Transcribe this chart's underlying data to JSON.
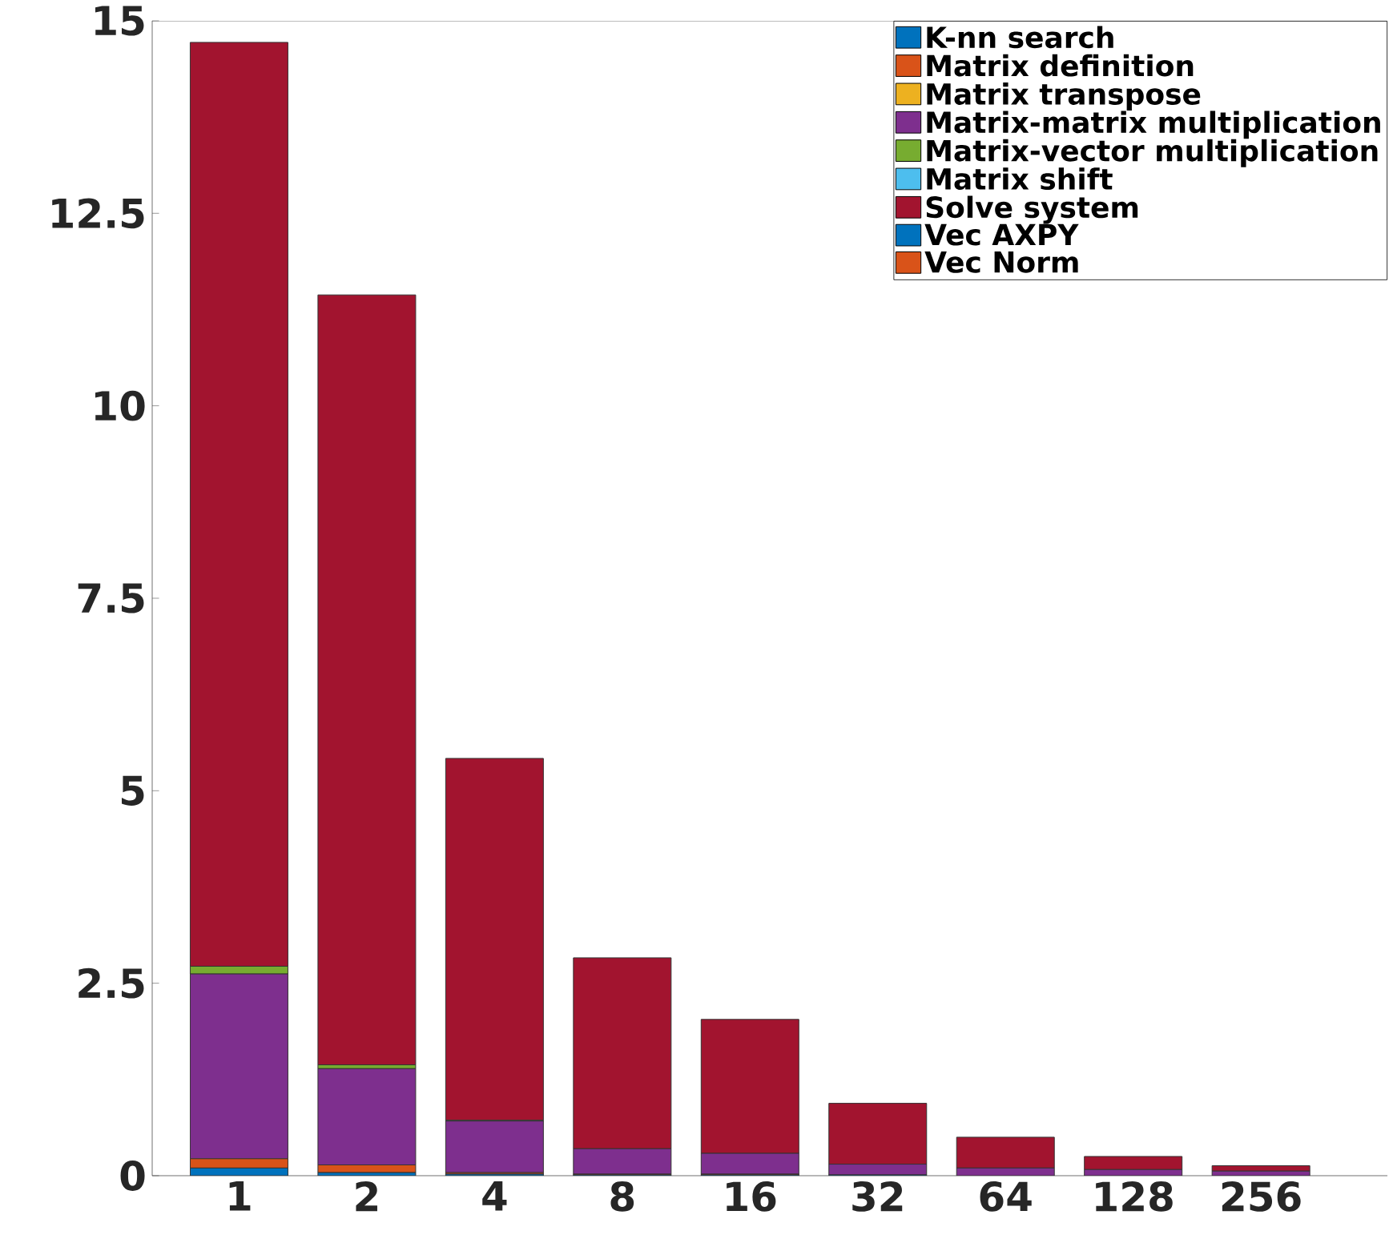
{
  "chart_data": {
    "type": "bar",
    "stacked": true,
    "categories": [
      "1",
      "2",
      "4",
      "8",
      "16",
      "32",
      "64",
      "128",
      "256"
    ],
    "ylim": [
      0,
      15
    ],
    "yticks": [
      0,
      2.5,
      5,
      7.5,
      10,
      12.5,
      15
    ],
    "legend": "top right",
    "series": [
      {
        "name": "K-nn search",
        "color": "#0072bd",
        "values": [
          0.1,
          0.04,
          0.02,
          0.01,
          0.01,
          0.01,
          0,
          0,
          0
        ]
      },
      {
        "name": "Matrix definition",
        "color": "#d95319",
        "values": [
          0.12,
          0.1,
          0.02,
          0.01,
          0.01,
          0,
          0,
          0,
          0
        ]
      },
      {
        "name": "Matrix transpose",
        "color": "#edb120",
        "values": [
          0,
          0,
          0,
          0,
          0,
          0,
          0,
          0,
          0
        ]
      },
      {
        "name": "Matrix-matrix multiplication",
        "color": "#7e2f8e",
        "values": [
          2.4,
          1.25,
          0.67,
          0.33,
          0.27,
          0.14,
          0.1,
          0.08,
          0.06
        ]
      },
      {
        "name": "Matrix-vector multiplication",
        "color": "#77ac30",
        "values": [
          0.1,
          0.05,
          0.01,
          0,
          0,
          0,
          0,
          0,
          0
        ]
      },
      {
        "name": "Matrix shift",
        "color": "#4dbeee",
        "values": [
          0,
          0,
          0,
          0,
          0,
          0,
          0,
          0,
          0
        ]
      },
      {
        "name": "Solve system",
        "color": "#a2142f",
        "values": [
          12.0,
          10.0,
          4.7,
          2.48,
          1.74,
          0.79,
          0.4,
          0.17,
          0.07
        ]
      },
      {
        "name": "Vec AXPY",
        "color": "#0072bd",
        "values": [
          0,
          0,
          0,
          0,
          0,
          0,
          0,
          0,
          0
        ]
      },
      {
        "name": "Vec Norm",
        "color": "#d95319",
        "values": [
          0,
          0,
          0,
          0,
          0,
          0,
          0,
          0,
          0
        ]
      }
    ]
  }
}
